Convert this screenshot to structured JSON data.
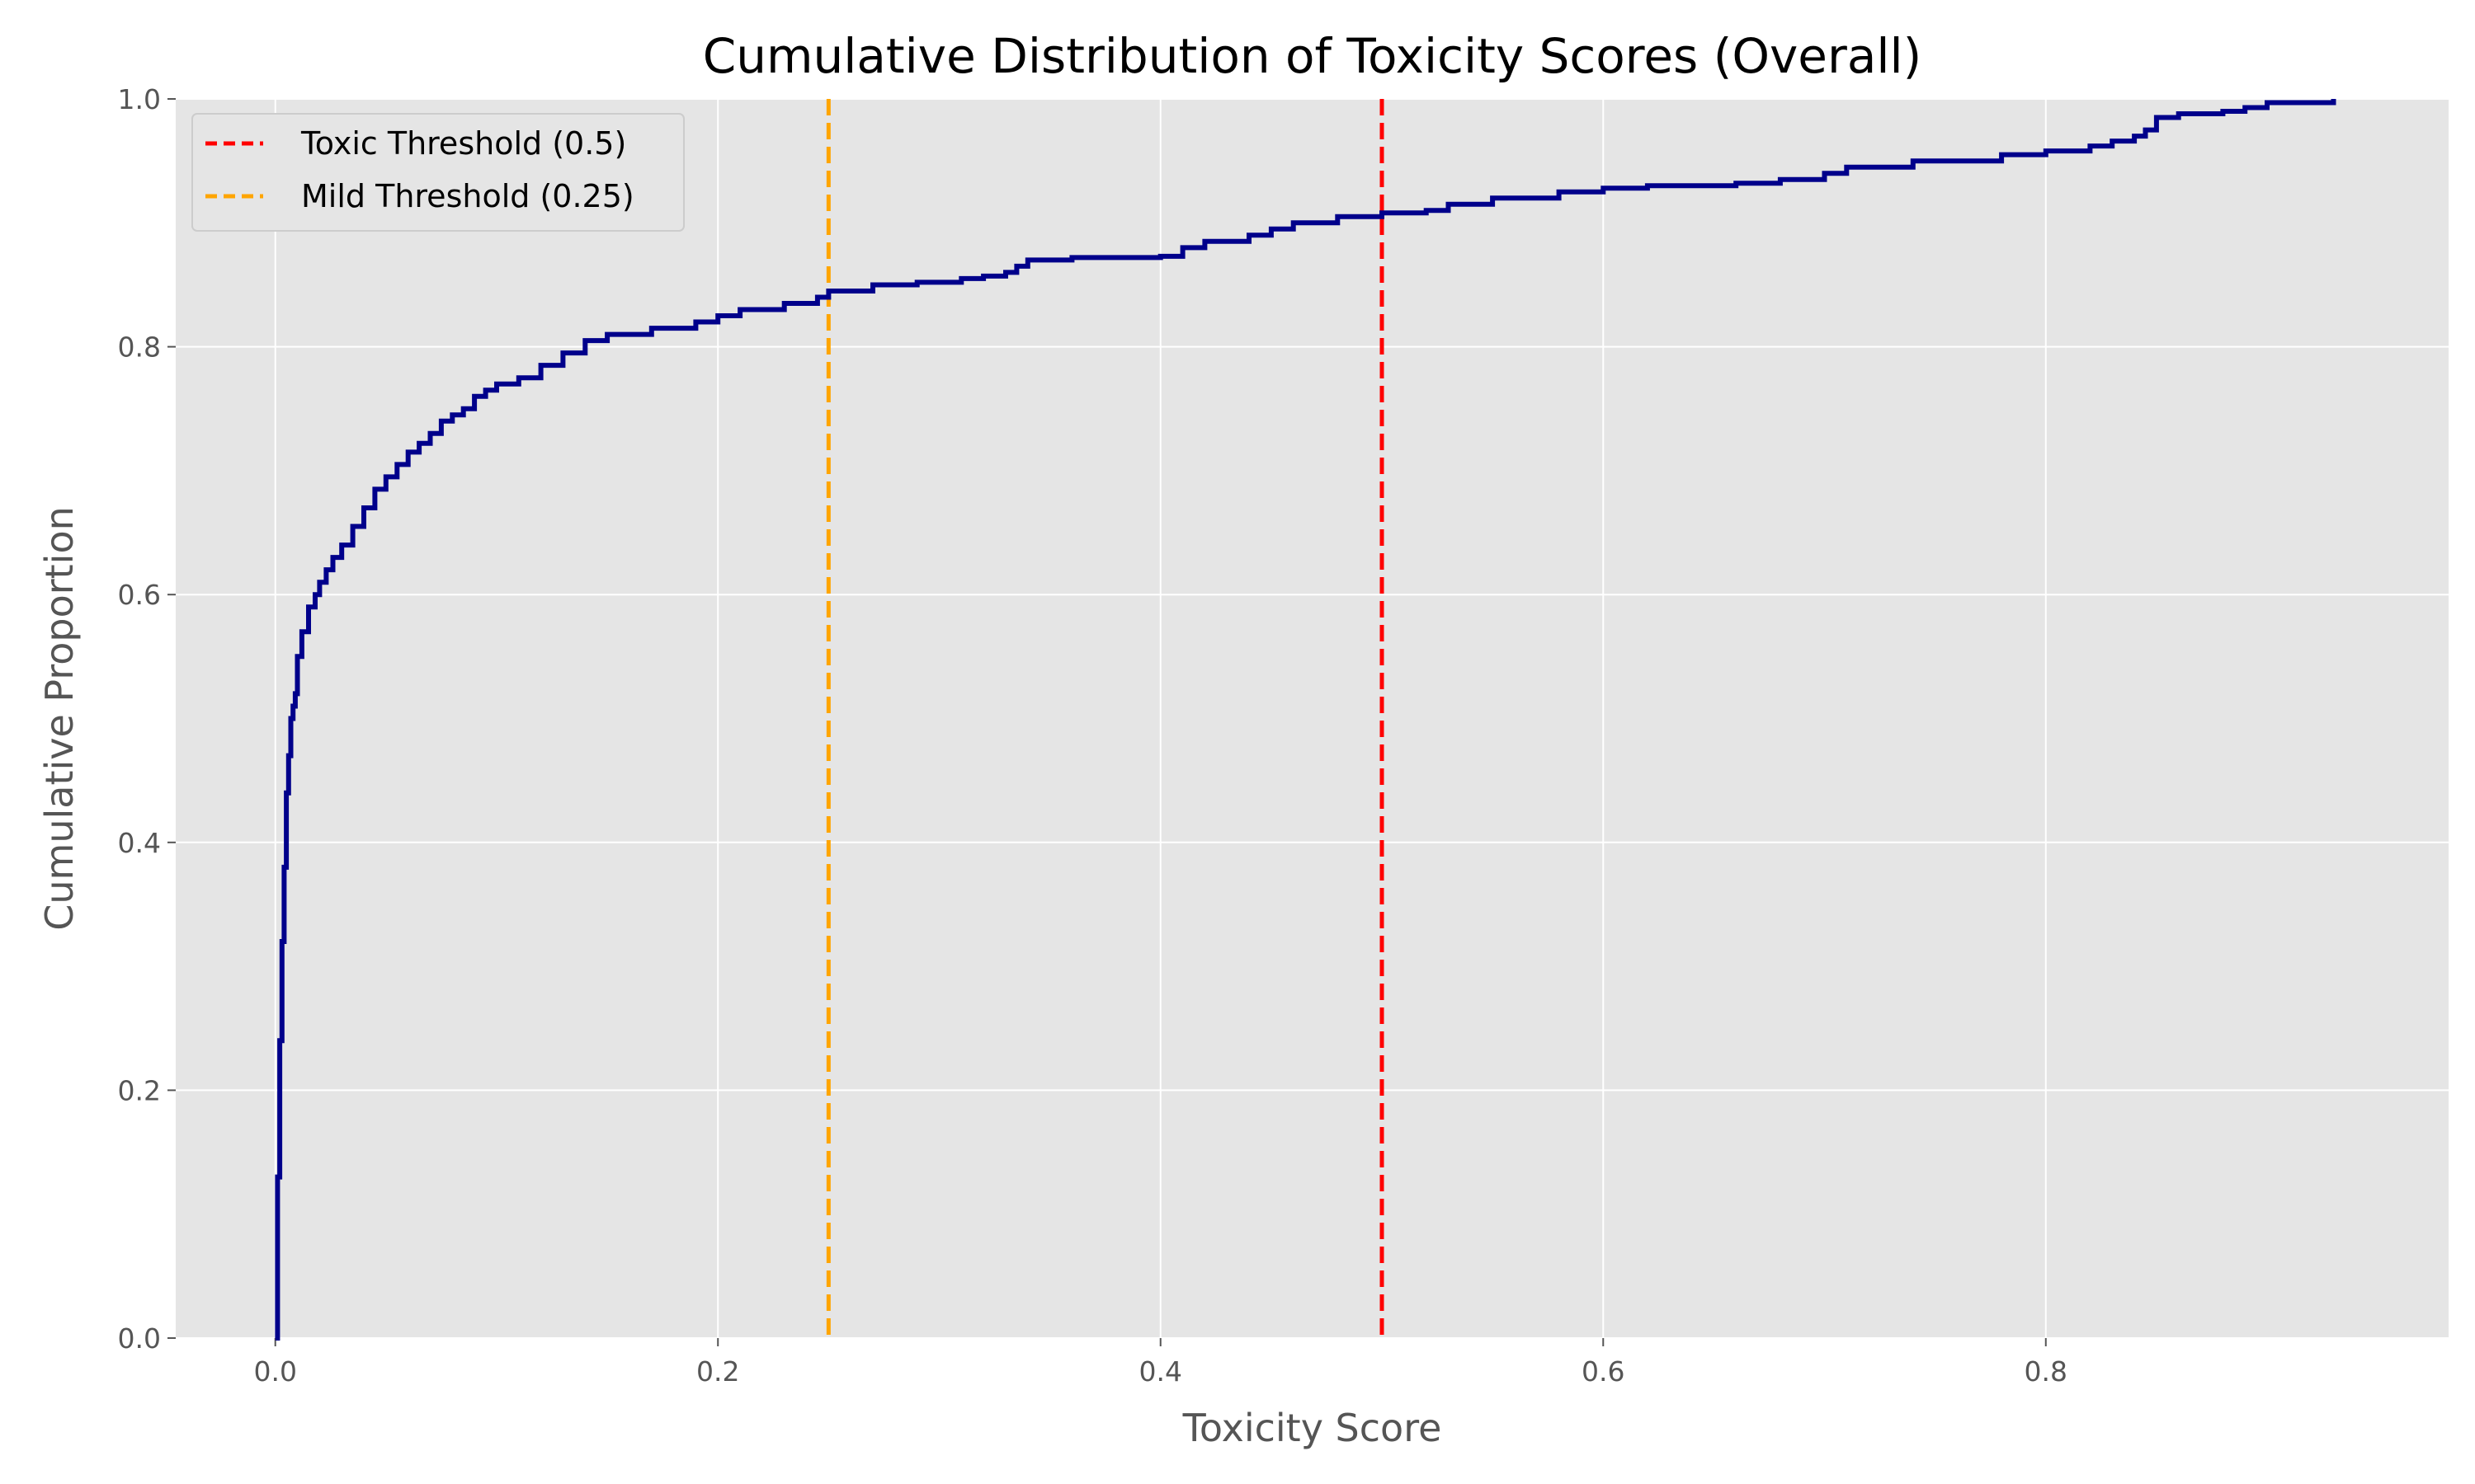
{
  "chart_data": {
    "type": "line",
    "title": "Cumulative Distribution of Toxicity Scores (Overall)",
    "xlabel": "Toxicity Score",
    "ylabel": "Cumulative Proportion",
    "xlim": [
      -0.045,
      0.982
    ],
    "ylim": [
      0,
      1.0
    ],
    "xticks": [
      0.0,
      0.2,
      0.4,
      0.6,
      0.8
    ],
    "xtick_labels": [
      "0.0",
      "0.2",
      "0.4",
      "0.6",
      "0.8"
    ],
    "yticks": [
      0.0,
      0.2,
      0.4,
      0.6,
      0.8,
      1.0
    ],
    "ytick_labels": [
      "0.0",
      "0.2",
      "0.4",
      "0.6",
      "0.8",
      "1.0"
    ],
    "grid": true,
    "legend_position": "top-left",
    "background": "#e5e5e5",
    "series": [
      {
        "color": "#00008b",
        "x": [
          0.0,
          0.001,
          0.002,
          0.003,
          0.004,
          0.005,
          0.006,
          0.007,
          0.008,
          0.009,
          0.01,
          0.012,
          0.015,
          0.018,
          0.02,
          0.023,
          0.026,
          0.03,
          0.035,
          0.04,
          0.045,
          0.05,
          0.055,
          0.06,
          0.065,
          0.07,
          0.075,
          0.08,
          0.085,
          0.09,
          0.095,
          0.1,
          0.11,
          0.12,
          0.13,
          0.14,
          0.15,
          0.17,
          0.19,
          0.2,
          0.21,
          0.23,
          0.245,
          0.25,
          0.27,
          0.29,
          0.31,
          0.32,
          0.33,
          0.335,
          0.34,
          0.36,
          0.4,
          0.41,
          0.42,
          0.44,
          0.45,
          0.46,
          0.48,
          0.5,
          0.52,
          0.53,
          0.55,
          0.58,
          0.6,
          0.62,
          0.66,
          0.68,
          0.7,
          0.71,
          0.74,
          0.78,
          0.8,
          0.82,
          0.83,
          0.84,
          0.845,
          0.85,
          0.86,
          0.88,
          0.89,
          0.9,
          0.93
        ],
        "y": [
          0.0,
          0.13,
          0.24,
          0.32,
          0.38,
          0.44,
          0.47,
          0.5,
          0.51,
          0.52,
          0.55,
          0.57,
          0.59,
          0.6,
          0.61,
          0.62,
          0.63,
          0.64,
          0.655,
          0.67,
          0.685,
          0.695,
          0.705,
          0.715,
          0.722,
          0.73,
          0.74,
          0.745,
          0.75,
          0.76,
          0.765,
          0.77,
          0.775,
          0.785,
          0.795,
          0.805,
          0.81,
          0.815,
          0.82,
          0.825,
          0.83,
          0.835,
          0.84,
          0.845,
          0.85,
          0.852,
          0.855,
          0.857,
          0.86,
          0.865,
          0.87,
          0.872,
          0.873,
          0.88,
          0.885,
          0.89,
          0.895,
          0.9,
          0.905,
          0.908,
          0.91,
          0.915,
          0.92,
          0.925,
          0.928,
          0.93,
          0.932,
          0.935,
          0.94,
          0.945,
          0.95,
          0.955,
          0.958,
          0.962,
          0.966,
          0.97,
          0.975,
          0.985,
          0.988,
          0.99,
          0.993,
          0.997,
          1.0
        ]
      }
    ],
    "reference_lines": [
      {
        "name": "Toxic Threshold (0.5)",
        "x": 0.5,
        "color": "#ff0000",
        "style": "dashed"
      },
      {
        "name": "Mild Threshold (0.25)",
        "x": 0.25,
        "color": "#ffa500",
        "style": "dashed"
      }
    ]
  }
}
